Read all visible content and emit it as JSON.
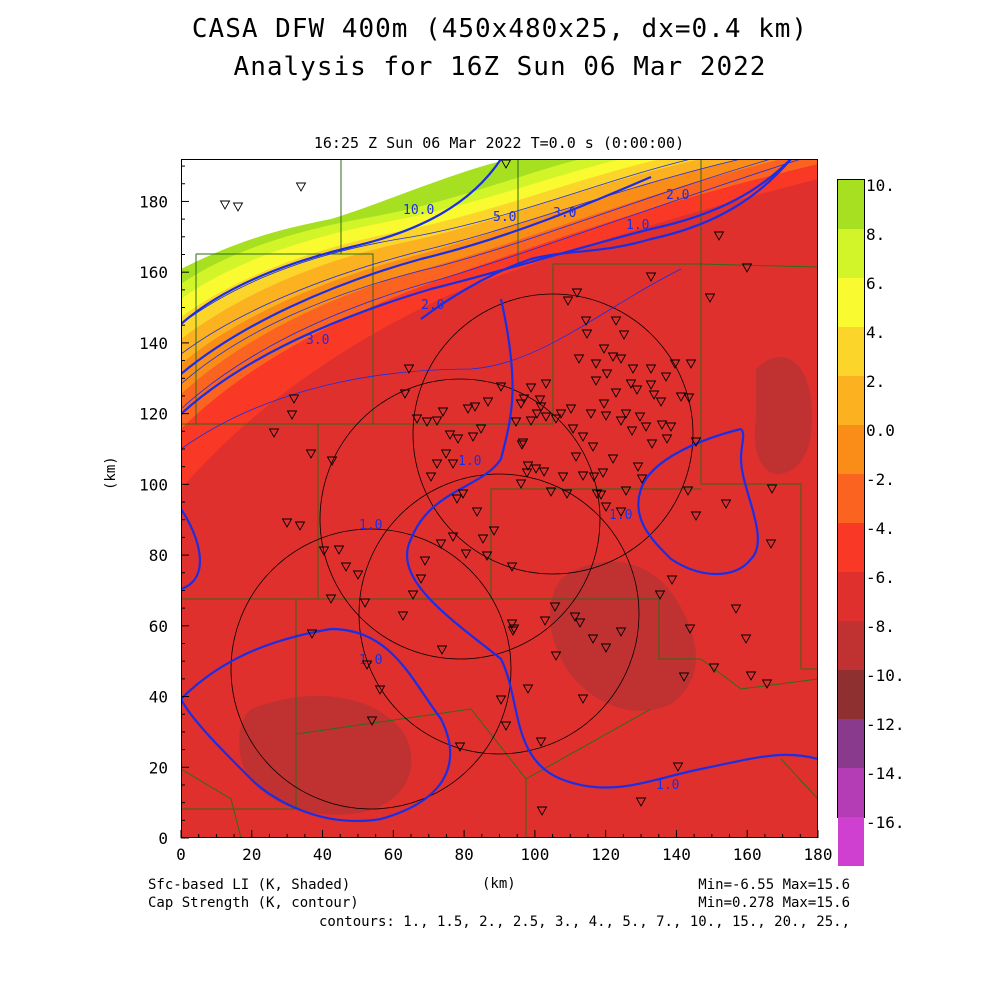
{
  "header": {
    "title_line1": "CASA DFW 400m (450x480x25, dx=0.4 km)",
    "title_line2": "Analysis for 16Z Sun 06 Mar 2022",
    "valid_time": "16:25 Z Sun 06 Mar 2022    T=0.0 s (0:00:00)"
  },
  "axes": {
    "x_label": "(km)",
    "y_label": "(km)",
    "x_ticks": [
      "0",
      "20",
      "40",
      "60",
      "80",
      "100",
      "120",
      "140",
      "160",
      "180"
    ],
    "y_ticks": [
      "0",
      "20",
      "40",
      "60",
      "80",
      "100",
      "120",
      "140",
      "160",
      "180"
    ],
    "x_range_km": [
      0,
      180
    ],
    "y_range_km": [
      0,
      192
    ]
  },
  "footer": {
    "shaded_field": "Sfc-based LI (K, Shaded)",
    "contour_field": "Cap Strength (K, contour)",
    "shaded_minmax": "Min=-6.55 Max=15.6",
    "contour_minmax": "Min=0.278 Max=15.6",
    "contours": "contours: 1., 1.5, 2., 2.5, 3., 4., 5., 7., 10., 15., 20., 25.,"
  },
  "colorbar": {
    "labels": [
      "10.",
      "8.",
      "6.",
      "4.",
      "2.",
      "0.0",
      "-2.",
      "-4.",
      "-6.",
      "-8.",
      "-10.",
      "-12.",
      "-14.",
      "-16."
    ],
    "colors": [
      "#a6e021",
      "#d2f52a",
      "#fafa30",
      "#fcd52a",
      "#fbb120",
      "#fa8c18",
      "#fa6420",
      "#fa3826",
      "#e0302e",
      "#c03232",
      "#8e3030",
      "#8a3a8c",
      "#b43cb4",
      "#d040d0",
      "#e050e0"
    ]
  },
  "contour_labels": [
    "10.0",
    "5.0",
    "3.0",
    "2.0",
    "1.0",
    "2.0",
    "3.0",
    "1.0",
    "1.0",
    "1.0",
    "1.0",
    "1.0"
  ],
  "radar_station_markers": "▽",
  "colors": {
    "contour": "#1a2ee6",
    "county": "#2d6a1a",
    "lightning": "#000000"
  }
}
